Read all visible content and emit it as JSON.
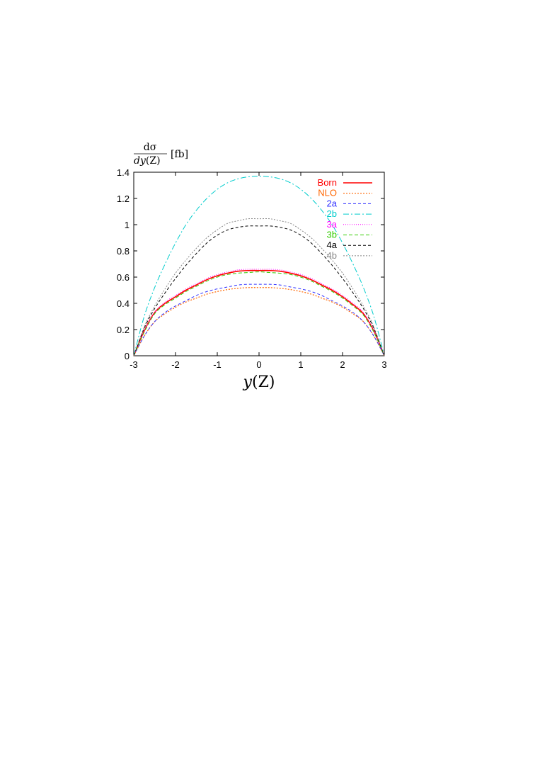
{
  "chart_data": {
    "type": "line",
    "ylabel": {
      "numerator": "dσ",
      "denominator_prefix": "dy",
      "denominator_paren": "(Z)",
      "unit": "[fb]"
    },
    "xlabel": {
      "var": "y",
      "paren": "(Z)"
    },
    "xlim": [
      -3,
      3
    ],
    "ylim": [
      0,
      1.4
    ],
    "xticks": [
      "-3",
      "-2",
      "-1",
      "0",
      "1",
      "2",
      "3"
    ],
    "yticks": [
      "0",
      "0.2",
      "0.4",
      "0.6",
      "0.8",
      "1",
      "1.2",
      "1.4"
    ],
    "grid": false,
    "legend_position": "top-right",
    "x": [
      -3.0,
      -2.75,
      -2.5,
      -2.25,
      -2.0,
      -1.75,
      -1.5,
      -1.25,
      -1.0,
      -0.75,
      -0.5,
      -0.25,
      0.0,
      0.25,
      0.5,
      0.75,
      1.0,
      1.25,
      1.5,
      1.75,
      2.0,
      2.25,
      2.5,
      2.75,
      3.0
    ],
    "series": [
      {
        "name": "Born",
        "color": "#ff0000",
        "dash": "",
        "width": 1.6,
        "values": [
          0.0,
          0.19,
          0.33,
          0.4,
          0.45,
          0.5,
          0.54,
          0.58,
          0.61,
          0.63,
          0.645,
          0.65,
          0.65,
          0.65,
          0.645,
          0.63,
          0.61,
          0.58,
          0.54,
          0.5,
          0.45,
          0.39,
          0.32,
          0.19,
          0.0
        ]
      },
      {
        "name": "NLO",
        "color": "#ff6600",
        "dash": "2,2",
        "width": 1.2,
        "values": [
          0.0,
          0.15,
          0.26,
          0.32,
          0.37,
          0.41,
          0.44,
          0.47,
          0.49,
          0.505,
          0.515,
          0.52,
          0.52,
          0.52,
          0.515,
          0.505,
          0.49,
          0.47,
          0.44,
          0.41,
          0.37,
          0.32,
          0.26,
          0.15,
          0.0
        ]
      },
      {
        "name": "2a",
        "color": "#3333ff",
        "dash": "4,3",
        "width": 1.0,
        "values": [
          0.0,
          0.15,
          0.26,
          0.33,
          0.38,
          0.42,
          0.46,
          0.49,
          0.51,
          0.525,
          0.54,
          0.545,
          0.545,
          0.545,
          0.54,
          0.525,
          0.51,
          0.49,
          0.46,
          0.42,
          0.38,
          0.33,
          0.26,
          0.15,
          0.0
        ]
      },
      {
        "name": "2b",
        "color": "#00cccc",
        "dash": "8,3,2,3",
        "width": 1.0,
        "values": [
          0.0,
          0.3,
          0.52,
          0.7,
          0.86,
          1.0,
          1.11,
          1.2,
          1.27,
          1.32,
          1.35,
          1.365,
          1.37,
          1.365,
          1.35,
          1.32,
          1.27,
          1.2,
          1.11,
          1.0,
          0.86,
          0.7,
          0.52,
          0.3,
          0.0
        ]
      },
      {
        "name": "3a",
        "color": "#ff00ff",
        "dash": "1,2",
        "width": 1.0,
        "values": [
          0.0,
          0.19,
          0.33,
          0.41,
          0.46,
          0.51,
          0.55,
          0.59,
          0.62,
          0.64,
          0.655,
          0.66,
          0.66,
          0.66,
          0.655,
          0.64,
          0.62,
          0.59,
          0.55,
          0.51,
          0.46,
          0.4,
          0.33,
          0.19,
          0.0
        ]
      },
      {
        "name": "3b",
        "color": "#33cc00",
        "dash": "5,3",
        "width": 1.0,
        "values": [
          0.0,
          0.18,
          0.32,
          0.39,
          0.44,
          0.49,
          0.53,
          0.57,
          0.6,
          0.62,
          0.63,
          0.635,
          0.64,
          0.635,
          0.63,
          0.62,
          0.6,
          0.57,
          0.53,
          0.49,
          0.44,
          0.38,
          0.31,
          0.18,
          0.0
        ]
      },
      {
        "name": "4a",
        "color": "#000000",
        "dash": "4,3",
        "width": 1.0,
        "values": [
          0.0,
          0.21,
          0.36,
          0.48,
          0.59,
          0.69,
          0.78,
          0.86,
          0.92,
          0.96,
          0.98,
          0.99,
          0.99,
          0.99,
          0.98,
          0.96,
          0.92,
          0.86,
          0.78,
          0.69,
          0.59,
          0.48,
          0.36,
          0.21,
          0.0
        ]
      },
      {
        "name": "4b",
        "color": "#888888",
        "dash": "2,2",
        "width": 1.0,
        "values": [
          0.0,
          0.22,
          0.38,
          0.51,
          0.63,
          0.73,
          0.82,
          0.9,
          0.96,
          1.01,
          1.03,
          1.045,
          1.045,
          1.045,
          1.03,
          1.01,
          0.96,
          0.9,
          0.82,
          0.73,
          0.63,
          0.51,
          0.38,
          0.22,
          0.0
        ]
      }
    ]
  }
}
